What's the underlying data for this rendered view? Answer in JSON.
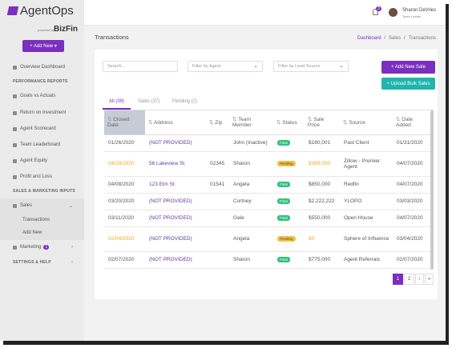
{
  "brand": {
    "name": "AgentOps",
    "powered": "powered by",
    "partner": "BizFin"
  },
  "add_new": "+ Add New",
  "sidebar": [
    {
      "kind": "item",
      "label": "Overview Dashboard"
    },
    {
      "kind": "section",
      "label": "PERFORMANCE REPORTS"
    },
    {
      "kind": "item",
      "label": "Goals vs Actuals"
    },
    {
      "kind": "item",
      "label": "Return on Investment"
    },
    {
      "kind": "item",
      "label": "Agent Scorecard"
    },
    {
      "kind": "item",
      "label": "Team Leaderboard"
    },
    {
      "kind": "item",
      "label": "Agent Equity"
    },
    {
      "kind": "item",
      "label": "Profit and Loss"
    },
    {
      "kind": "section",
      "label": "SALES & MARKETING INPUTS"
    },
    {
      "kind": "group",
      "label": "Sales"
    },
    {
      "kind": "sub",
      "label": "Transactions"
    },
    {
      "kind": "sub",
      "label": "Add New"
    },
    {
      "kind": "item",
      "label": "Marketing",
      "badge": "1"
    },
    {
      "kind": "section",
      "label": "SETTINGS & HELP"
    }
  ],
  "user": {
    "name": "Sharon DeVries",
    "role": "Team Leader",
    "notifications": "3"
  },
  "page_title": "Transactions",
  "breadcrumb": [
    "Dashboard",
    "Sales",
    "Transactions"
  ],
  "search_placeholder": "Search...",
  "filters": [
    "Filter by Agent",
    "Filter by Lead Source"
  ],
  "buttons": {
    "add_sale": "+ Add New Sale",
    "upload": "+ Upload Bulk Sales"
  },
  "tabs": [
    "All (39)",
    "Sales (37)",
    "Pending (2)"
  ],
  "table": {
    "columns": [
      "Closed Date",
      "Address",
      "Zip",
      "Team Member",
      "Status",
      "Sale Price",
      "Source",
      "Date Added"
    ],
    "rows": [
      [
        "01/26/2020",
        "(NOT PROVIDED)",
        null,
        "John (Inactive)",
        "Final",
        "$180,001",
        "Past Client",
        "01/31/2020"
      ],
      [
        "04/29/2020",
        "56 Lakeview St.",
        "02345",
        "Sharon",
        "Pending",
        "$369,000",
        "Zillow - Premier Agent",
        "04/07/2020"
      ],
      [
        "04/08/2020",
        "123 Elm St",
        "01541",
        "Angela",
        "Final",
        "$850,000",
        "Redfin",
        "04/07/2020"
      ],
      [
        "03/20/2020",
        "(NOT PROVIDED)",
        null,
        "Cortney",
        "Final",
        "$2,222,222",
        "YLOPO",
        "03/03/2020"
      ],
      [
        "03/11/2020",
        "(NOT PROVIDED)",
        null,
        "Gale",
        "Final",
        "$550,000",
        "Open House",
        "04/07/2020"
      ],
      [
        "02/04/2020",
        "(NOT PROVIDED)",
        null,
        "Angela",
        "Pending",
        "$0",
        "Sphere of Influence",
        "03/04/2020"
      ],
      [
        "02/07/2020",
        "(NOT PROVIDED)",
        null,
        "Sharon",
        "Final",
        "$775,000",
        "Agent Referrals",
        "02/07/2020"
      ]
    ]
  },
  "pagination": [
    "1",
    "2",
    "›",
    "»"
  ]
}
